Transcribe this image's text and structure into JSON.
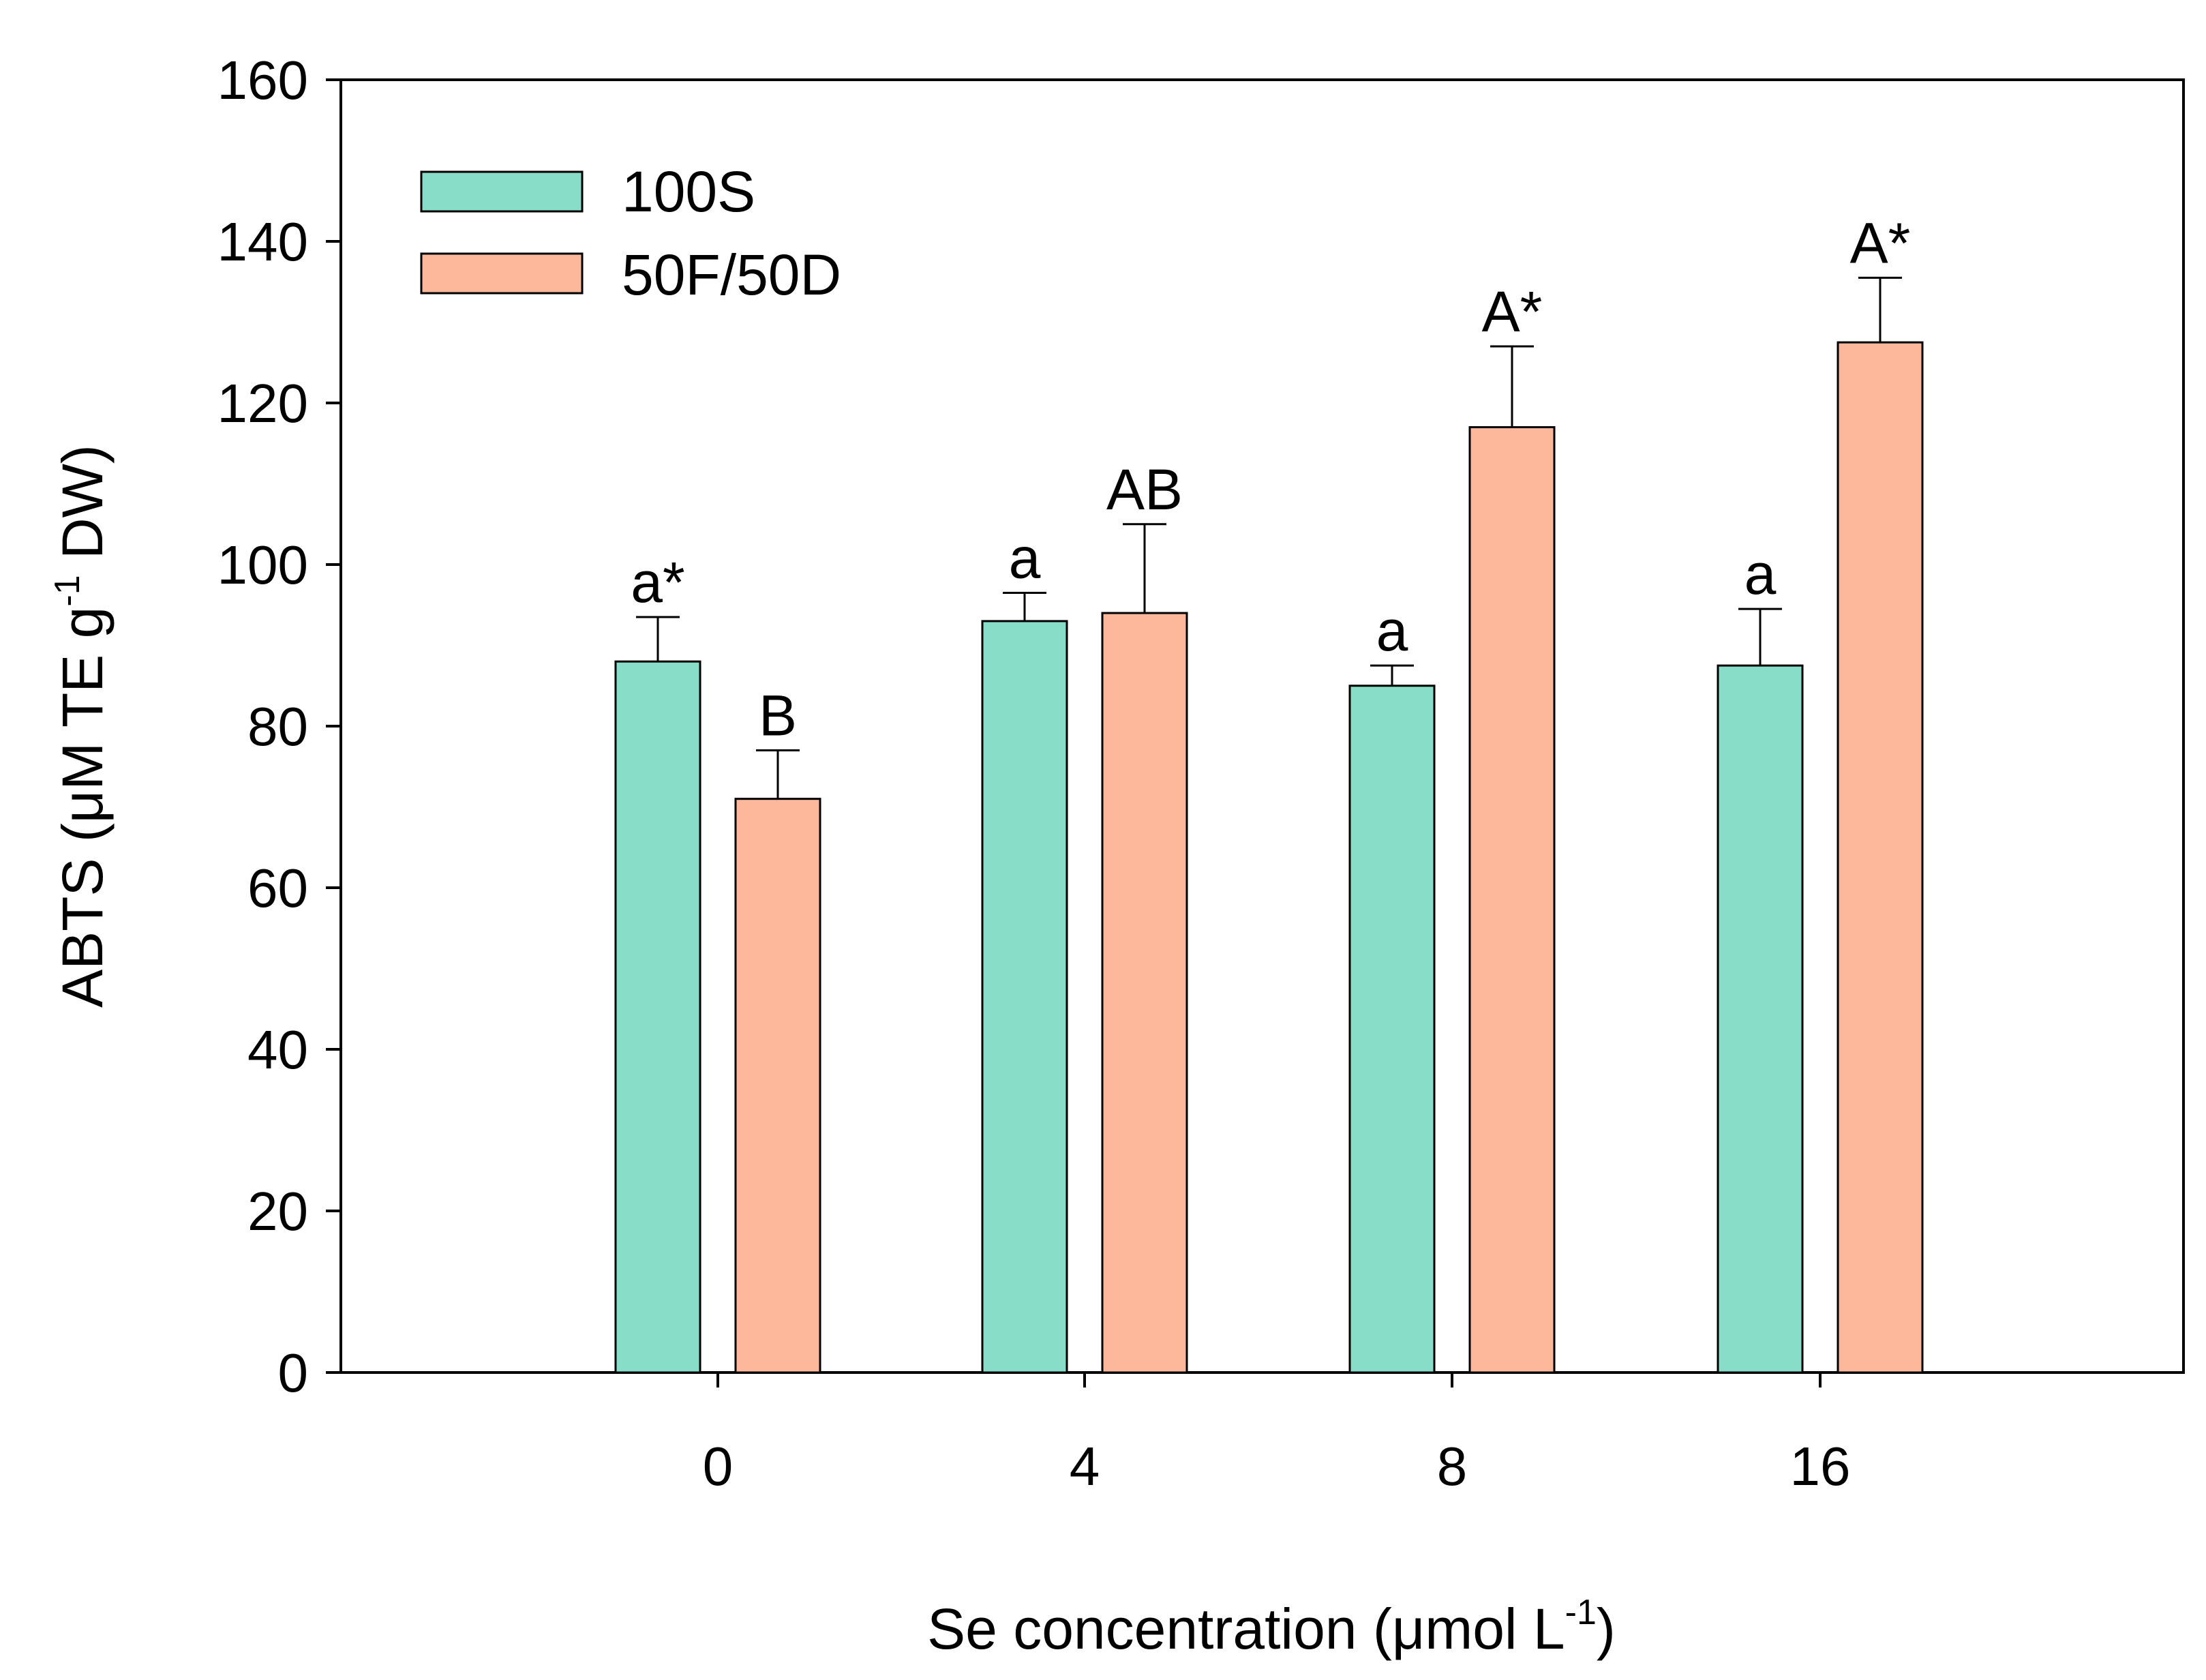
{
  "chart_data": {
    "type": "bar",
    "title": "",
    "xlabel": {
      "prefix": "Se concentration (μmol L",
      "sup": "-1",
      "suffix": ")"
    },
    "ylabel": {
      "prefix": "ABTS (μM TE g",
      "sup": "-1",
      "suffix": " DW)"
    },
    "ylim": [
      0,
      160
    ],
    "yticks": [
      "0",
      "20",
      "40",
      "60",
      "80",
      "100",
      "120",
      "140",
      "160"
    ],
    "categories": [
      "0",
      "4",
      "8",
      "16"
    ],
    "series": [
      {
        "name": "100S",
        "color": "#88DDC8",
        "values": [
          88,
          93,
          85,
          87.5
        ],
        "errors": [
          5.5,
          3.5,
          2.5,
          7
        ],
        "labels": [
          "a*",
          "a",
          "a",
          "a"
        ]
      },
      {
        "name": "50F/50D",
        "color": "#FDB79B",
        "values": [
          71,
          94,
          117,
          127.5
        ],
        "errors": [
          6,
          11,
          10,
          8
        ],
        "labels": [
          "B",
          "AB",
          "A*",
          "A*"
        ]
      }
    ],
    "legend_position": "top-left",
    "grid": false
  }
}
